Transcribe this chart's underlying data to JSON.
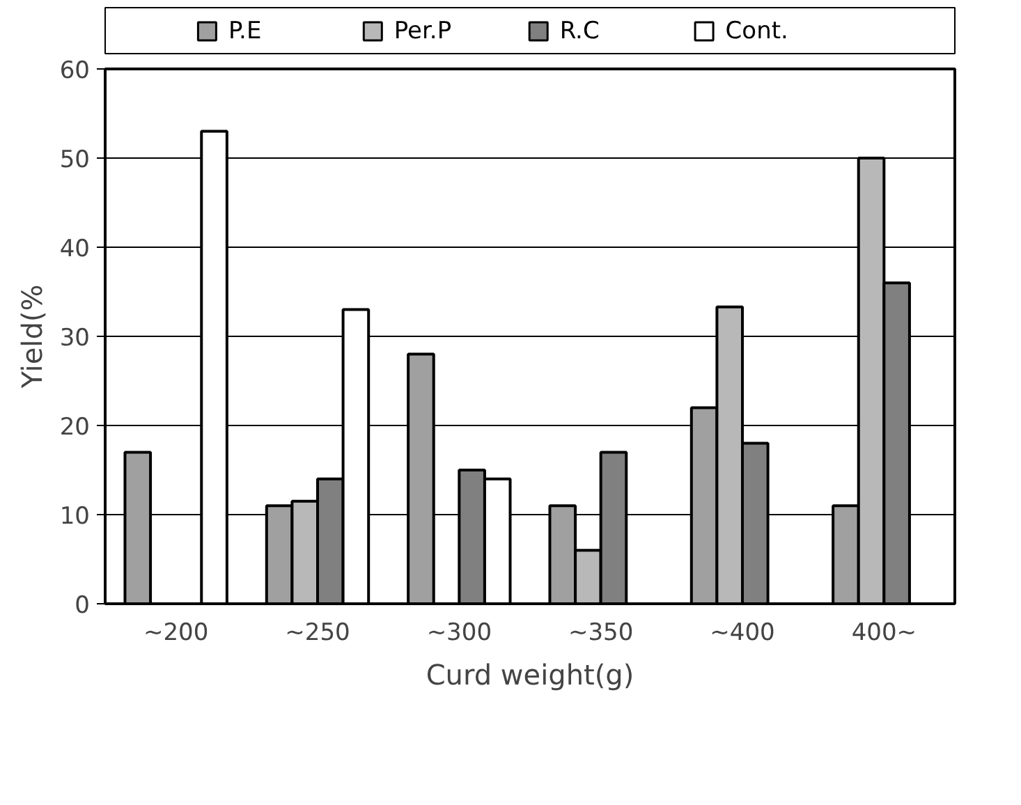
{
  "chart_data": {
    "type": "bar",
    "xlabel": "Curd weight(g)",
    "ylabel": "Yield(%",
    "categories": [
      "~200",
      "~250",
      "~300",
      "~350",
      "~400",
      "400~"
    ],
    "series": [
      {
        "name": "P.E",
        "color": "#a0a0a0",
        "values": [
          17,
          11,
          28,
          11,
          22,
          11
        ]
      },
      {
        "name": "Per.P",
        "color": "#b8b8b8",
        "values": [
          null,
          11.5,
          null,
          6,
          33.3,
          50
        ]
      },
      {
        "name": "R.C",
        "color": "#808080",
        "values": [
          null,
          14,
          15,
          17,
          18,
          36
        ]
      },
      {
        "name": "Cont.",
        "color": "#ffffff",
        "values": [
          53,
          33,
          14,
          null,
          null,
          null
        ]
      }
    ],
    "ylim": [
      0,
      60
    ],
    "yticks": [
      0,
      10,
      20,
      30,
      40,
      50,
      60
    ],
    "grid": "y",
    "legend": "top"
  }
}
